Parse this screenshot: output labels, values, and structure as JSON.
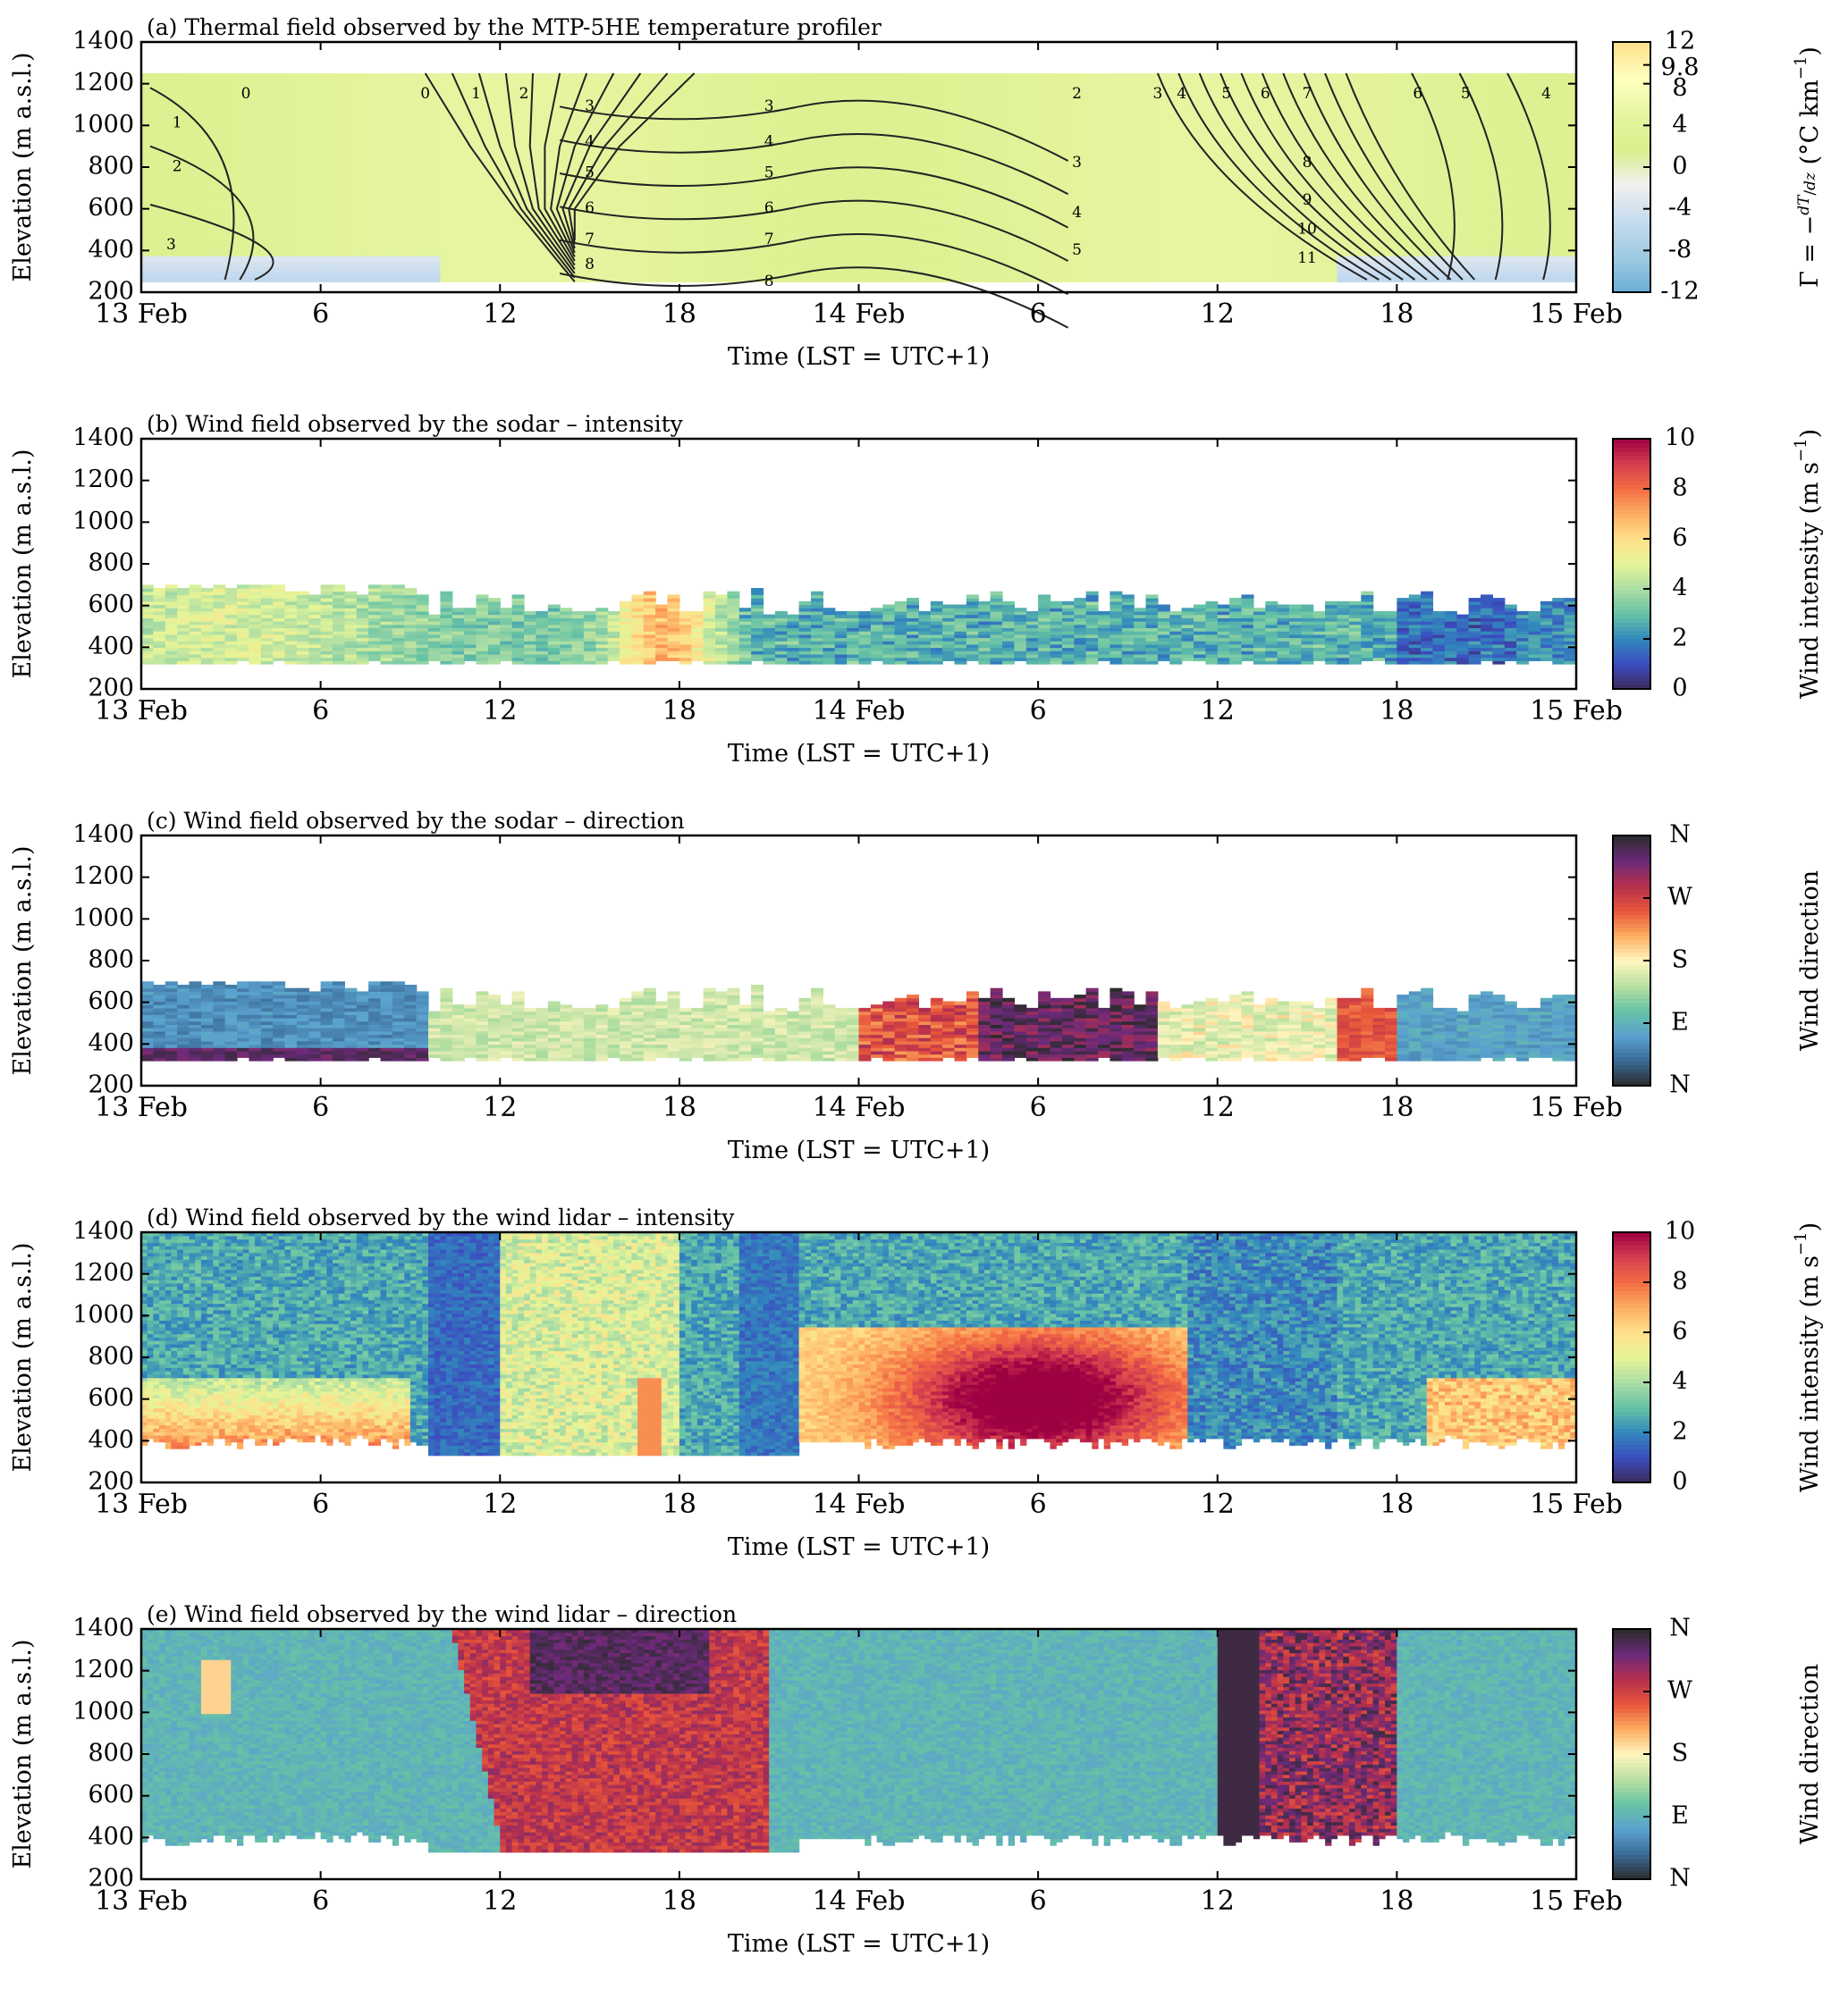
{
  "chart_data": [
    {
      "type": "heatmap",
      "title": "(a) Thermal field observed by the MTP-5HE temperature profiler",
      "xlabel": "Time (LST = UTC+1)",
      "ylabel": "Elevation (m a.s.l.)",
      "x_ticks": [
        "13 Feb",
        "6",
        "12",
        "18",
        "14 Feb",
        "6",
        "12",
        "18",
        "15 Feb"
      ],
      "y_ticks": [
        "200",
        "400",
        "600",
        "800",
        "1000",
        "1200",
        "1400"
      ],
      "xlim": [
        0,
        48
      ],
      "ylim": [
        200,
        1400
      ],
      "data_extent": {
        "x": [
          0,
          48
        ],
        "y": [
          250,
          1250
        ]
      },
      "colorbar": {
        "label_main": "Γ = −",
        "label_frac_num": "dT",
        "label_frac_den": "dz",
        "label_unit": "(°C km",
        "label_exp": "−1",
        "label_close": ")",
        "range": [
          -12,
          12
        ],
        "ticks": [
          "12",
          "9.8",
          "8",
          "4",
          "0",
          "-4",
          "-8",
          "-12"
        ],
        "tick_values": [
          12,
          9.8,
          8,
          4,
          0,
          -4,
          -8,
          -12
        ],
        "palette": [
          "#6baed6",
          "#9ecae1",
          "#c6dbef",
          "#f0f0f0",
          "#d9ef8b",
          "#e6f5a0",
          "#ffffbf",
          "#fee08b"
        ]
      },
      "contour_labels": [
        {
          "x": 3.5,
          "y": 1150,
          "text": "0"
        },
        {
          "x": 9.5,
          "y": 1150,
          "text": "0"
        },
        {
          "x": 11.2,
          "y": 1150,
          "text": "1"
        },
        {
          "x": 12.8,
          "y": 1150,
          "text": "2"
        },
        {
          "x": 1.2,
          "y": 1010,
          "text": "1"
        },
        {
          "x": 1.2,
          "y": 800,
          "text": "2"
        },
        {
          "x": 1.0,
          "y": 425,
          "text": "3"
        },
        {
          "x": 15.0,
          "y": 1090,
          "text": "3"
        },
        {
          "x": 15.0,
          "y": 920,
          "text": "4"
        },
        {
          "x": 15.0,
          "y": 770,
          "text": "5"
        },
        {
          "x": 15.0,
          "y": 600,
          "text": "6"
        },
        {
          "x": 15.0,
          "y": 450,
          "text": "7"
        },
        {
          "x": 15.0,
          "y": 330,
          "text": "8"
        },
        {
          "x": 21.0,
          "y": 1090,
          "text": "3"
        },
        {
          "x": 21.0,
          "y": 920,
          "text": "4"
        },
        {
          "x": 21.0,
          "y": 770,
          "text": "5"
        },
        {
          "x": 21.0,
          "y": 600,
          "text": "6"
        },
        {
          "x": 21.0,
          "y": 450,
          "text": "7"
        },
        {
          "x": 21.0,
          "y": 250,
          "text": "8"
        },
        {
          "x": 31.3,
          "y": 1150,
          "text": "2"
        },
        {
          "x": 31.3,
          "y": 820,
          "text": "3"
        },
        {
          "x": 31.3,
          "y": 580,
          "text": "4"
        },
        {
          "x": 31.3,
          "y": 400,
          "text": "5"
        },
        {
          "x": 34.0,
          "y": 1150,
          "text": "3"
        },
        {
          "x": 34.8,
          "y": 1150,
          "text": "4"
        },
        {
          "x": 36.3,
          "y": 1150,
          "text": "5"
        },
        {
          "x": 37.6,
          "y": 1150,
          "text": "6"
        },
        {
          "x": 39.0,
          "y": 1150,
          "text": "7"
        },
        {
          "x": 39.0,
          "y": 820,
          "text": "8"
        },
        {
          "x": 39.0,
          "y": 640,
          "text": "9"
        },
        {
          "x": 39.0,
          "y": 500,
          "text": "10"
        },
        {
          "x": 39.0,
          "y": 360,
          "text": "11"
        },
        {
          "x": 42.7,
          "y": 1150,
          "text": "6"
        },
        {
          "x": 44.3,
          "y": 1150,
          "text": "5"
        },
        {
          "x": 47.0,
          "y": 1150,
          "text": "4"
        }
      ]
    },
    {
      "type": "heatmap",
      "title": "(b) Wind field observed by the sodar – intensity",
      "xlabel": "Time (LST = UTC+1)",
      "ylabel": "Elevation (m a.s.l.)",
      "x_ticks": [
        "13 Feb",
        "6",
        "12",
        "18",
        "14 Feb",
        "6",
        "12",
        "18",
        "15 Feb"
      ],
      "y_ticks": [
        "200",
        "400",
        "600",
        "800",
        "1000",
        "1200",
        "1400"
      ],
      "xlim": [
        0,
        48
      ],
      "ylim": [
        200,
        1400
      ],
      "data_extent": {
        "x": [
          0,
          48
        ],
        "y": [
          320,
          700
        ]
      },
      "colorbar": {
        "label_main": "Wind intensity (m s",
        "label_exp": "−1",
        "label_close": ")",
        "range": [
          0,
          10
        ],
        "ticks": [
          "10",
          "8",
          "6",
          "4",
          "2",
          "0"
        ],
        "tick_values": [
          10,
          8,
          6,
          4,
          2,
          0
        ],
        "palette": [
          "#3c2a58",
          "#3b4cc0",
          "#3288bd",
          "#66c2a5",
          "#abdda4",
          "#e6f598",
          "#fee08b",
          "#fdae61",
          "#f46d43",
          "#d53e4f",
          "#9e0142"
        ]
      }
    },
    {
      "type": "heatmap",
      "title": "(c) Wind field observed by the sodar – direction",
      "xlabel": "Time (LST = UTC+1)",
      "ylabel": "Elevation (m a.s.l.)",
      "x_ticks": [
        "13 Feb",
        "6",
        "12",
        "18",
        "14 Feb",
        "6",
        "12",
        "18",
        "15 Feb"
      ],
      "y_ticks": [
        "200",
        "400",
        "600",
        "800",
        "1000",
        "1200",
        "1400"
      ],
      "xlim": [
        0,
        48
      ],
      "ylim": [
        200,
        1400
      ],
      "data_extent": {
        "x": [
          0,
          48
        ],
        "y": [
          320,
          700
        ]
      },
      "colorbar": {
        "label_main": "Wind direction",
        "ticks": [
          "N",
          "W",
          "S",
          "E",
          "N"
        ],
        "tick_fractions": [
          1,
          0.75,
          0.5,
          0.25,
          0
        ],
        "palette": [
          "#2b2b2b",
          "#3a6a96",
          "#5aa1cf",
          "#66c2a5",
          "#b8e0a0",
          "#fff6c0",
          "#fdae61",
          "#e8553a",
          "#b52f4e",
          "#6a2a7a",
          "#2b2b2b"
        ]
      }
    },
    {
      "type": "heatmap",
      "title": "(d) Wind field observed by the wind lidar – intensity",
      "xlabel": "Time (LST = UTC+1)",
      "ylabel": "Elevation (m a.s.l.)",
      "x_ticks": [
        "13 Feb",
        "6",
        "12",
        "18",
        "14 Feb",
        "6",
        "12",
        "18",
        "15 Feb"
      ],
      "y_ticks": [
        "200",
        "400",
        "600",
        "800",
        "1000",
        "1200",
        "1400"
      ],
      "xlim": [
        0,
        48
      ],
      "ylim": [
        200,
        1400
      ],
      "data_extent": {
        "x": [
          0,
          48
        ],
        "y": [
          330,
          1400
        ]
      },
      "colorbar": {
        "label_main": "Wind intensity (m s",
        "label_exp": "−1",
        "label_close": ")",
        "range": [
          0,
          10
        ],
        "ticks": [
          "10",
          "8",
          "6",
          "4",
          "2",
          "0"
        ],
        "tick_values": [
          10,
          8,
          6,
          4,
          2,
          0
        ],
        "palette": [
          "#3c2a58",
          "#3b4cc0",
          "#3288bd",
          "#66c2a5",
          "#abdda4",
          "#e6f598",
          "#fee08b",
          "#fdae61",
          "#f46d43",
          "#d53e4f",
          "#9e0142"
        ]
      }
    },
    {
      "type": "heatmap",
      "title": "(e) Wind field observed by the wind lidar – direction",
      "xlabel": "Time (LST = UTC+1)",
      "ylabel": "Elevation (m a.s.l.)",
      "x_ticks": [
        "13 Feb",
        "6",
        "12",
        "18",
        "14 Feb",
        "6",
        "12",
        "18",
        "15 Feb"
      ],
      "y_ticks": [
        "200",
        "400",
        "600",
        "800",
        "1000",
        "1200",
        "1400"
      ],
      "xlim": [
        0,
        48
      ],
      "ylim": [
        200,
        1400
      ],
      "data_extent": {
        "x": [
          0,
          48
        ],
        "y": [
          330,
          1400
        ]
      },
      "colorbar": {
        "label_main": "Wind direction",
        "ticks": [
          "N",
          "W",
          "S",
          "E",
          "N"
        ],
        "tick_fractions": [
          1,
          0.75,
          0.5,
          0.25,
          0
        ],
        "palette": [
          "#2b2b2b",
          "#3a6a96",
          "#5aa1cf",
          "#66c2a5",
          "#b8e0a0",
          "#fff6c0",
          "#fdae61",
          "#e8553a",
          "#b52f4e",
          "#6a2a7a",
          "#2b2b2b"
        ]
      }
    }
  ]
}
